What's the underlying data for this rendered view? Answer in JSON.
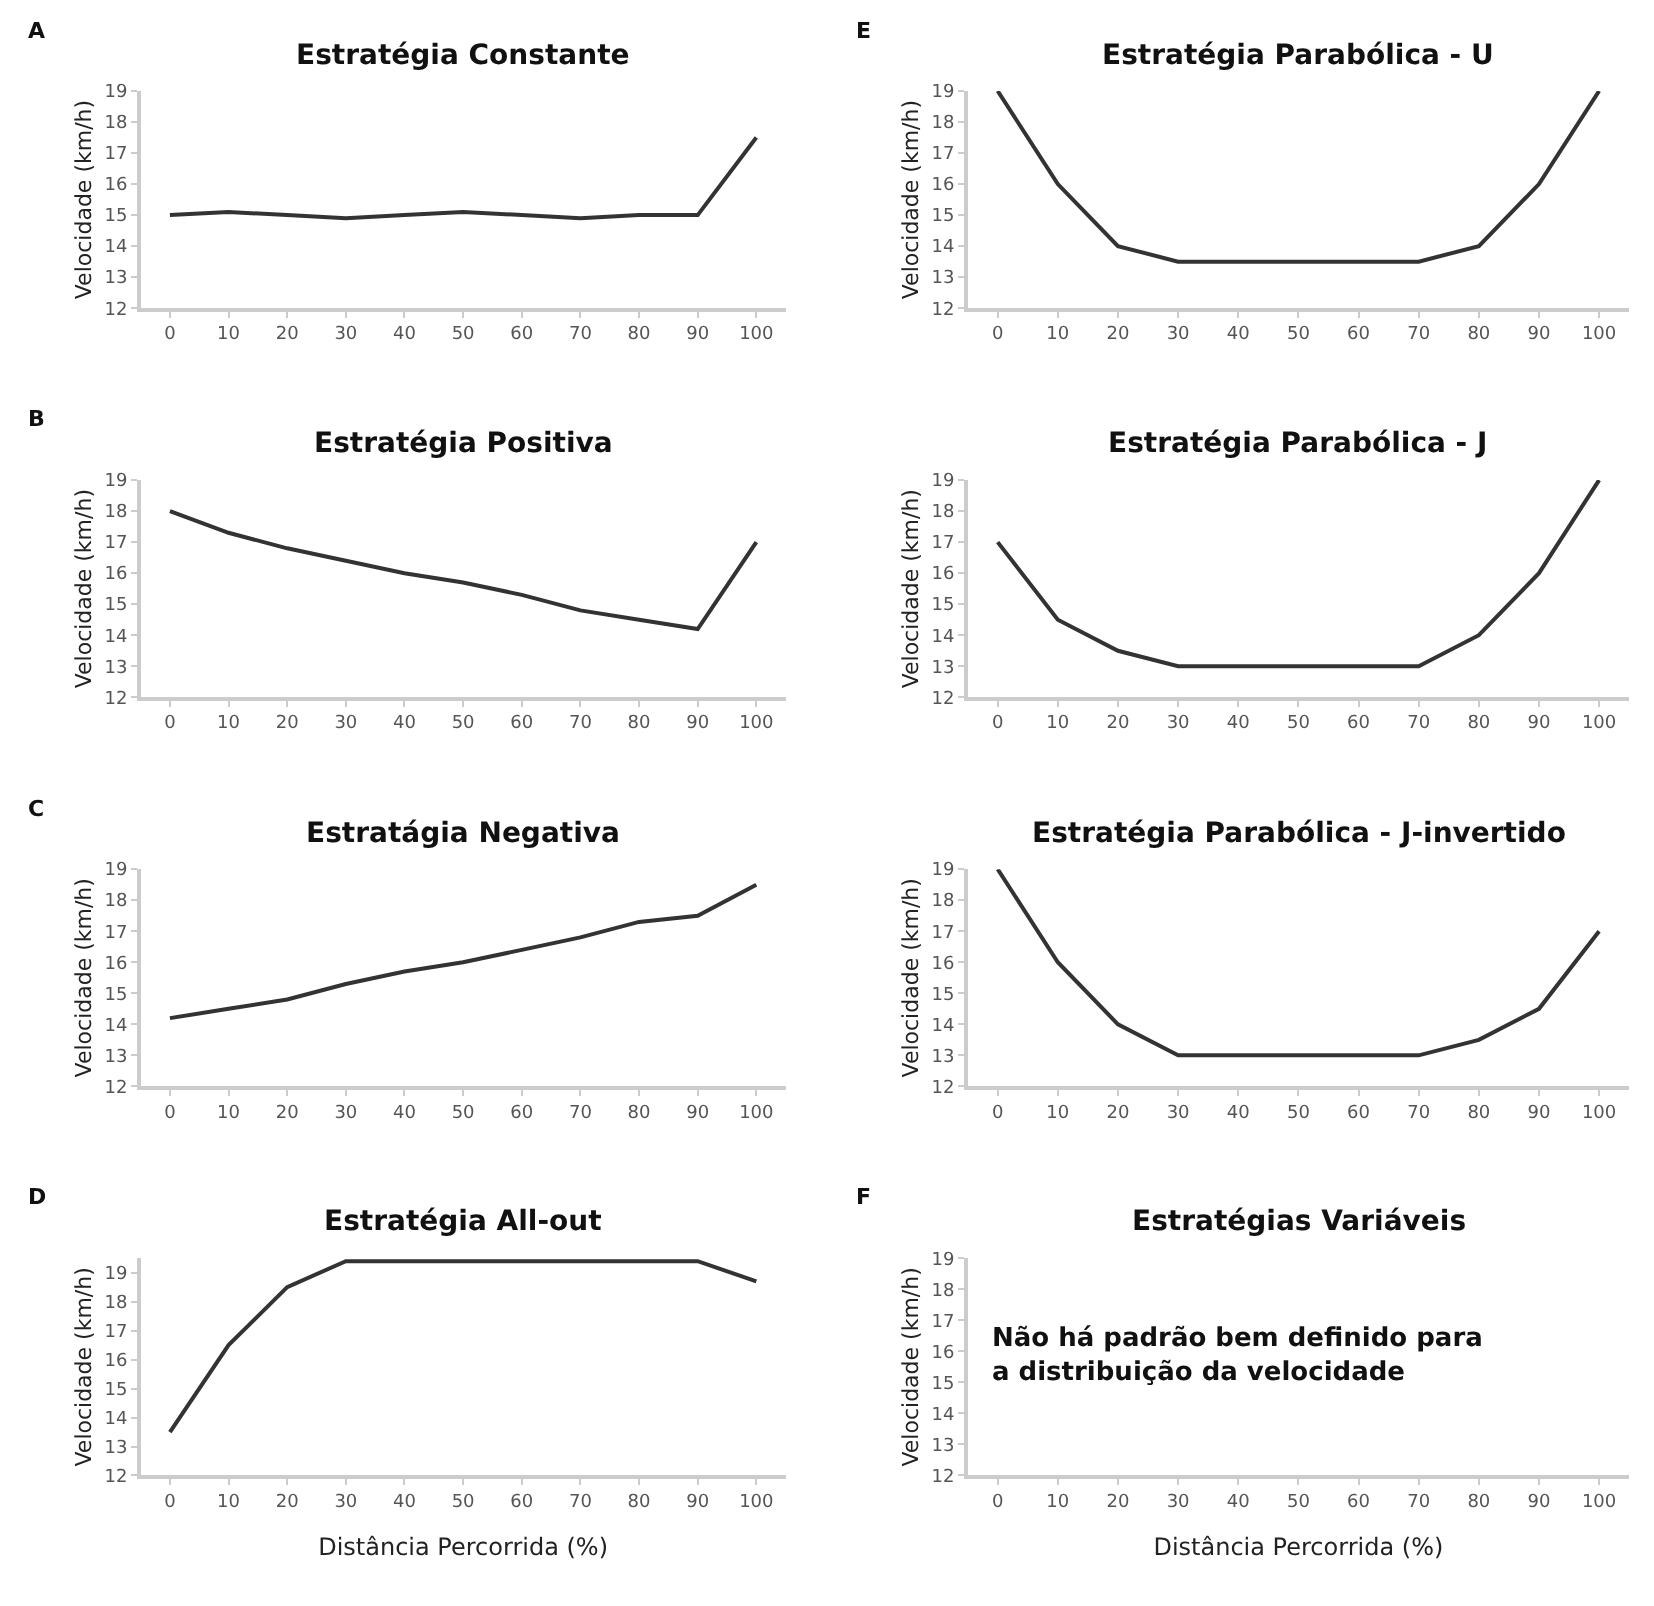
{
  "chart_data": [
    {
      "type": "line",
      "title": "Estratégia Constante",
      "annotations": [
        "A"
      ],
      "ylabel": "Velocidade (km/h)",
      "categories": [
        "0",
        "10",
        "20",
        "30",
        "40",
        "50",
        "60",
        "70",
        "80",
        "90",
        "100"
      ],
      "series": [
        {
          "color": "#333333",
          "values": [
            15,
            15.1,
            15,
            14.9,
            15,
            15.1,
            15,
            14.9,
            15,
            15,
            17.5
          ]
        }
      ],
      "ylim": [
        12,
        19
      ],
      "yticks": [
        12,
        13,
        14,
        15,
        16,
        17,
        18,
        19
      ],
      "marker": "none",
      "line_style": "solid"
    },
    {
      "type": "line",
      "title": "Estratégia Parabólica - U",
      "annotations": [
        "E"
      ],
      "ylabel": "Velocidade (km/h)",
      "categories": [
        "0",
        "10",
        "20",
        "30",
        "40",
        "50",
        "60",
        "70",
        "80",
        "90",
        "100"
      ],
      "series": [
        {
          "color": "#333333",
          "values": [
            19,
            16,
            14,
            13.5,
            13.5,
            13.5,
            13.5,
            13.5,
            14,
            16,
            19
          ]
        }
      ],
      "ylim": [
        12,
        19
      ],
      "yticks": [
        12,
        13,
        14,
        15,
        16,
        17,
        18,
        19
      ],
      "marker": "none",
      "line_style": "solid"
    },
    {
      "type": "line",
      "title": "Estratégia Positiva",
      "annotations": [
        "B"
      ],
      "ylabel": "Velocidade (km/h)",
      "categories": [
        "0",
        "10",
        "20",
        "30",
        "40",
        "50",
        "60",
        "70",
        "80",
        "90",
        "100"
      ],
      "series": [
        {
          "color": "#333333",
          "values": [
            18,
            17.3,
            16.8,
            16.4,
            16,
            15.7,
            15.3,
            14.8,
            14.5,
            14.2,
            17
          ]
        }
      ],
      "ylim": [
        12,
        19
      ],
      "yticks": [
        12,
        13,
        14,
        15,
        16,
        17,
        18,
        19
      ],
      "marker": "none",
      "line_style": "solid"
    },
    {
      "type": "line",
      "title": "Estratégia Parabólica - J",
      "ylabel": "Velocidade (km/h)",
      "categories": [
        "0",
        "10",
        "20",
        "30",
        "40",
        "50",
        "60",
        "70",
        "80",
        "90",
        "100"
      ],
      "series": [
        {
          "color": "#333333",
          "values": [
            17,
            14.5,
            13.5,
            13,
            13,
            13,
            13,
            13,
            14,
            16,
            19
          ]
        }
      ],
      "ylim": [
        12,
        19
      ],
      "yticks": [
        12,
        13,
        14,
        15,
        16,
        17,
        18,
        19
      ],
      "marker": "none",
      "line_style": "solid"
    },
    {
      "type": "line",
      "title": "Estratágia Negativa",
      "annotations": [
        "C"
      ],
      "ylabel": "Velocidade (km/h)",
      "categories": [
        "0",
        "10",
        "20",
        "30",
        "40",
        "50",
        "60",
        "70",
        "80",
        "90",
        "100"
      ],
      "series": [
        {
          "color": "#333333",
          "values": [
            14.2,
            14.5,
            14.8,
            15.3,
            15.7,
            16,
            16.4,
            16.8,
            17.3,
            17.5,
            18.5
          ]
        }
      ],
      "ylim": [
        12,
        19
      ],
      "yticks": [
        12,
        13,
        14,
        15,
        16,
        17,
        18,
        19
      ],
      "marker": "none",
      "line_style": "solid"
    },
    {
      "type": "line",
      "title": "Estratégia Parabólica - J-invertido",
      "ylabel": "Velocidade (km/h)",
      "categories": [
        "0",
        "10",
        "20",
        "30",
        "40",
        "50",
        "60",
        "70",
        "80",
        "90",
        "100"
      ],
      "series": [
        {
          "color": "#333333",
          "values": [
            19,
            16,
            14,
            13,
            13,
            13,
            13,
            13,
            13.5,
            14.5,
            17
          ]
        }
      ],
      "ylim": [
        12,
        19
      ],
      "yticks": [
        12,
        13,
        14,
        15,
        16,
        17,
        18,
        19
      ],
      "marker": "none",
      "line_style": "solid"
    },
    {
      "type": "line",
      "title": "Estratégia All-out",
      "annotations": [
        "D"
      ],
      "xlabel": "Distância Percorrida (%)",
      "ylabel": "Velocidade (km/h)",
      "categories": [
        "0",
        "10",
        "20",
        "30",
        "40",
        "50",
        "60",
        "70",
        "80",
        "90",
        "100"
      ],
      "series": [
        {
          "color": "#333333",
          "values": [
            13.5,
            16.5,
            18.5,
            19.4,
            19.4,
            19.4,
            19.4,
            19.4,
            19.4,
            19.4,
            18.7
          ]
        }
      ],
      "ylim": [
        12,
        19.5
      ],
      "yticks": [
        12,
        13,
        14,
        15,
        16,
        17,
        18,
        19
      ],
      "marker": "none",
      "line_style": "solid"
    },
    {
      "type": "line",
      "title": "Estratégias Variáveis",
      "annotations": [
        "F",
        "Não há padrão bem definido para\na distribuição da velocidade"
      ],
      "xlabel": "Distância Percorrida (%)",
      "ylabel": "Velocidade (km/h)",
      "categories": [
        "0",
        "10",
        "20",
        "30",
        "40",
        "50",
        "60",
        "70",
        "80",
        "90",
        "100"
      ],
      "series": [
        {
          "color": "#333333",
          "values": [
            null,
            null,
            null,
            null,
            null,
            null,
            null,
            null,
            null,
            null,
            null
          ]
        }
      ],
      "ylim": [
        12,
        19
      ],
      "yticks": [
        12,
        13,
        14,
        15,
        16,
        17,
        18,
        19
      ],
      "marker": "none",
      "line_style": "solid"
    }
  ]
}
